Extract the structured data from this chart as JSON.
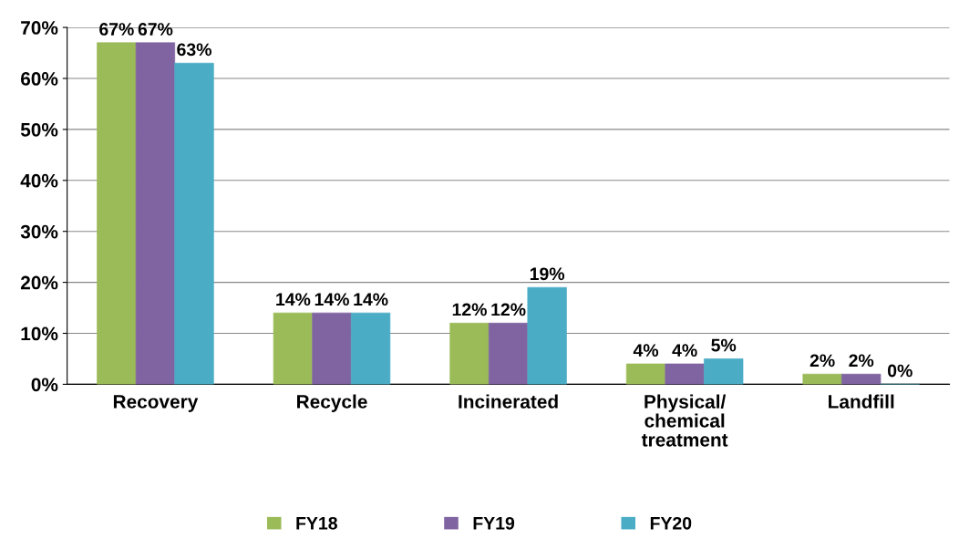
{
  "chart_data": {
    "type": "bar",
    "categories": [
      "Recovery",
      "Recycle",
      "Incinerated",
      "Physical/\nchemical\ntreatment",
      "Landfill"
    ],
    "series": [
      {
        "name": "FY18",
        "color": "#9bbb59",
        "values": [
          67,
          14,
          12,
          4,
          2
        ],
        "value_labels": [
          "67%",
          "14%",
          "12%",
          "4%",
          "2%"
        ]
      },
      {
        "name": "FY19",
        "color": "#8064a2",
        "values": [
          67,
          14,
          12,
          4,
          2
        ],
        "value_labels": [
          "67%",
          "14%",
          "12%",
          "4%",
          "2%"
        ]
      },
      {
        "name": "FY20",
        "color": "#4bacc6",
        "values": [
          63,
          14,
          19,
          5,
          0
        ],
        "value_labels": [
          "63%",
          "14%",
          "19%",
          "5%",
          "0%"
        ]
      }
    ],
    "ylim": [
      0,
      70
    ],
    "yticks": [
      {
        "value": 0,
        "label": "0%"
      },
      {
        "value": 10,
        "label": "10%"
      },
      {
        "value": 20,
        "label": "20%"
      },
      {
        "value": 30,
        "label": "30%"
      },
      {
        "value": 40,
        "label": "40%"
      },
      {
        "value": 50,
        "label": "50%"
      },
      {
        "value": 60,
        "label": "60%"
      },
      {
        "value": 70,
        "label": "70%"
      }
    ],
    "grid": "y",
    "legend": "bottom"
  }
}
